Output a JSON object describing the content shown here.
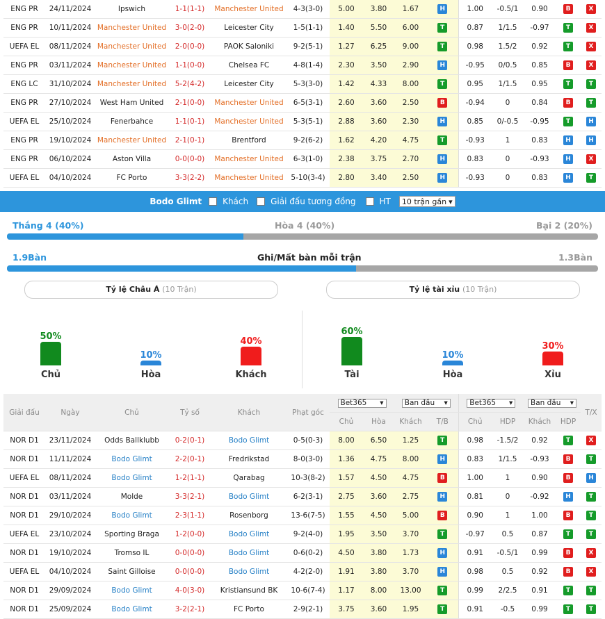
{
  "top_matches": [
    {
      "league": "ENG PR",
      "date": "24/11/2024",
      "home": "Ipswich",
      "home_hl": false,
      "score": "1-1(1-1)",
      "away": "Manchester United",
      "away_hl": true,
      "hdp": "4-3(3-0)",
      "o1": "5.00",
      "o2": "3.80",
      "o3": "1.67",
      "r1": "H",
      "a1": "1.00",
      "a2": "-0.5/1",
      "a3": "0.90",
      "r2": "B",
      "r3": "X"
    },
    {
      "league": "ENG PR",
      "date": "10/11/2024",
      "home": "Manchester United",
      "home_hl": true,
      "score": "3-0(2-0)",
      "away": "Leicester City",
      "away_hl": false,
      "hdp": "1-5(1-1)",
      "o1": "1.40",
      "o2": "5.50",
      "o3": "6.00",
      "r1": "T",
      "a1": "0.87",
      "a2": "1/1.5",
      "a3": "-0.97",
      "r2": "T",
      "r3": "X"
    },
    {
      "league": "UEFA EL",
      "date": "08/11/2024",
      "home": "Manchester United",
      "home_hl": true,
      "score": "2-0(0-0)",
      "away": "PAOK Saloniki",
      "away_hl": false,
      "hdp": "9-2(5-1)",
      "o1": "1.27",
      "o2": "6.25",
      "o3": "9.00",
      "r1": "T",
      "a1": "0.98",
      "a2": "1.5/2",
      "a3": "0.92",
      "r2": "T",
      "r3": "X"
    },
    {
      "league": "ENG PR",
      "date": "03/11/2024",
      "home": "Manchester United",
      "home_hl": true,
      "score": "1-1(0-0)",
      "away": "Chelsea FC",
      "away_hl": false,
      "hdp": "4-8(1-4)",
      "o1": "2.30",
      "o2": "3.50",
      "o3": "2.90",
      "r1": "H",
      "a1": "-0.95",
      "a2": "0/0.5",
      "a3": "0.85",
      "r2": "B",
      "r3": "X"
    },
    {
      "league": "ENG LC",
      "date": "31/10/2024",
      "home": "Manchester United",
      "home_hl": true,
      "score": "5-2(4-2)",
      "away": "Leicester City",
      "away_hl": false,
      "hdp": "5-3(3-0)",
      "o1": "1.42",
      "o2": "4.33",
      "o3": "8.00",
      "r1": "T",
      "a1": "0.95",
      "a2": "1/1.5",
      "a3": "0.95",
      "r2": "T",
      "r3": "T"
    },
    {
      "league": "ENG PR",
      "date": "27/10/2024",
      "home": "West Ham United",
      "home_hl": false,
      "score": "2-1(0-0)",
      "away": "Manchester United",
      "away_hl": true,
      "hdp": "6-5(3-1)",
      "o1": "2.60",
      "o2": "3.60",
      "o3": "2.50",
      "r1": "B",
      "a1": "-0.94",
      "a2": "0",
      "a3": "0.84",
      "r2": "B",
      "r3": "T"
    },
    {
      "league": "UEFA EL",
      "date": "25/10/2024",
      "home": "Fenerbahce",
      "home_hl": false,
      "score": "1-1(0-1)",
      "away": "Manchester United",
      "away_hl": true,
      "hdp": "5-3(5-1)",
      "o1": "2.88",
      "o2": "3.60",
      "o3": "2.30",
      "r1": "H",
      "a1": "0.85",
      "a2": "0/-0.5",
      "a3": "-0.95",
      "r2": "T",
      "r3": "H"
    },
    {
      "league": "ENG PR",
      "date": "19/10/2024",
      "home": "Manchester United",
      "home_hl": true,
      "score": "2-1(0-1)",
      "away": "Brentford",
      "away_hl": false,
      "hdp": "9-2(6-2)",
      "o1": "1.62",
      "o2": "4.20",
      "o3": "4.75",
      "r1": "T",
      "a1": "-0.93",
      "a2": "1",
      "a3": "0.83",
      "r2": "H",
      "r3": "H"
    },
    {
      "league": "ENG PR",
      "date": "06/10/2024",
      "home": "Aston Villa",
      "home_hl": false,
      "score": "0-0(0-0)",
      "away": "Manchester United",
      "away_hl": true,
      "hdp": "6-3(1-0)",
      "o1": "2.38",
      "o2": "3.75",
      "o3": "2.70",
      "r1": "H",
      "a1": "0.83",
      "a2": "0",
      "a3": "-0.93",
      "r2": "H",
      "r3": "X"
    },
    {
      "league": "UEFA EL",
      "date": "04/10/2024",
      "home": "FC Porto",
      "home_hl": false,
      "score": "3-3(2-2)",
      "away": "Manchester United",
      "away_hl": true,
      "hdp": "5-10(3-4)",
      "o1": "2.80",
      "o2": "3.40",
      "o3": "2.50",
      "r1": "H",
      "a1": "-0.93",
      "a2": "0",
      "a3": "0.83",
      "r2": "H",
      "r3": "T"
    }
  ],
  "filter": {
    "team": "Bodo Glimt",
    "opt1": "Khách",
    "opt2": "Giải đấu tương đồng",
    "opt3": "HT",
    "select": "10 trận gần"
  },
  "record": {
    "win": "Thắng 4 (40%)",
    "draw": "Hòa 4 (40%)",
    "loss": "Bại 2 (20%)",
    "win_fraction": 0.4
  },
  "goals": {
    "left": "1.9Bàn",
    "title": "Ghi/Mất bàn mỗi trận",
    "right": "1.3Bàn",
    "left_fraction": 0.59
  },
  "pills": {
    "left_title": "Tỷ lệ Châu Á",
    "left_count": "(10 Trận)",
    "right_title": "Tỷ lệ tài xỉu",
    "right_count": "(10 Trận)"
  },
  "asian": [
    {
      "pct": "50%",
      "label": "Chủ",
      "value": 0.5,
      "color": "#118a1e"
    },
    {
      "pct": "10%",
      "label": "Hòa",
      "value": 0.1,
      "color": "#2a86d8"
    },
    {
      "pct": "40%",
      "label": "Khách",
      "value": 0.4,
      "color": "#f01c1c"
    }
  ],
  "overunder": [
    {
      "pct": "60%",
      "label": "Tài",
      "value": 0.6,
      "color": "#118a1e"
    },
    {
      "pct": "10%",
      "label": "Hòa",
      "value": 0.1,
      "color": "#2a86d8"
    },
    {
      "pct": "30%",
      "label": "Xỉu",
      "value": 0.3,
      "color": "#f01c1c"
    }
  ],
  "header": {
    "league": "Giải đấu",
    "date": "Ngày",
    "home": "Chủ",
    "score": "Tỷ số",
    "away": "Khách",
    "corner": "Phạt góc",
    "book1": "Bet365",
    "book2": "Ban đầu",
    "book3": "Bet365",
    "book4": "Ban đầu",
    "sub_home": "Chủ",
    "sub_draw": "Hòa",
    "sub_away": "Khách",
    "sub_tb": "T/B",
    "sub_home2": "Chủ",
    "sub_hdp": "HDP",
    "sub_away2": "Khách",
    "sub_hdp2": "HDP",
    "tx": "T/X"
  },
  "bottom_matches": [
    {
      "league": "NOR D1",
      "date": "23/11/2024",
      "home": "Odds Ballklubb",
      "home_hl": false,
      "score": "0-2(0-1)",
      "away": "Bodo Glimt",
      "away_hl": true,
      "hdp": "0-5(0-3)",
      "o1": "8.00",
      "o2": "6.50",
      "o3": "1.25",
      "r1": "T",
      "a1": "0.98",
      "a2": "-1.5/2",
      "a3": "0.92",
      "r2": "T",
      "r3": "X"
    },
    {
      "league": "NOR D1",
      "date": "11/11/2024",
      "home": "Bodo Glimt",
      "home_hl": true,
      "score": "2-2(0-1)",
      "away": "Fredrikstad",
      "away_hl": false,
      "hdp": "8-0(3-0)",
      "o1": "1.36",
      "o2": "4.75",
      "o3": "8.00",
      "r1": "H",
      "a1": "0.83",
      "a2": "1/1.5",
      "a3": "-0.93",
      "r2": "B",
      "r3": "T"
    },
    {
      "league": "UEFA EL",
      "date": "08/11/2024",
      "home": "Bodo Glimt",
      "home_hl": true,
      "score": "1-2(1-1)",
      "away": "Qarabag",
      "away_hl": false,
      "hdp": "10-3(8-2)",
      "o1": "1.57",
      "o2": "4.50",
      "o3": "4.75",
      "r1": "B",
      "a1": "1.00",
      "a2": "1",
      "a3": "0.90",
      "r2": "B",
      "r3": "H"
    },
    {
      "league": "NOR D1",
      "date": "03/11/2024",
      "home": "Molde",
      "home_hl": false,
      "score": "3-3(2-1)",
      "away": "Bodo Glimt",
      "away_hl": true,
      "hdp": "6-2(3-1)",
      "o1": "2.75",
      "o2": "3.60",
      "o3": "2.75",
      "r1": "H",
      "a1": "0.81",
      "a2": "0",
      "a3": "-0.92",
      "r2": "H",
      "r3": "T"
    },
    {
      "league": "NOR D1",
      "date": "29/10/2024",
      "home": "Bodo Glimt",
      "home_hl": true,
      "score": "2-3(1-1)",
      "away": "Rosenborg",
      "away_hl": false,
      "hdp": "13-6(7-5)",
      "o1": "1.55",
      "o2": "4.50",
      "o3": "5.00",
      "r1": "B",
      "a1": "0.90",
      "a2": "1",
      "a3": "1.00",
      "r2": "B",
      "r3": "T"
    },
    {
      "league": "UEFA EL",
      "date": "23/10/2024",
      "home": "Sporting Braga",
      "home_hl": false,
      "score": "1-2(0-0)",
      "away": "Bodo Glimt",
      "away_hl": true,
      "hdp": "9-2(4-0)",
      "o1": "1.95",
      "o2": "3.50",
      "o3": "3.70",
      "r1": "T",
      "a1": "-0.97",
      "a2": "0.5",
      "a3": "0.87",
      "r2": "T",
      "r3": "T"
    },
    {
      "league": "NOR D1",
      "date": "19/10/2024",
      "home": "Tromso IL",
      "home_hl": false,
      "score": "0-0(0-0)",
      "away": "Bodo Glimt",
      "away_hl": true,
      "hdp": "0-6(0-2)",
      "o1": "4.50",
      "o2": "3.80",
      "o3": "1.73",
      "r1": "H",
      "a1": "0.91",
      "a2": "-0.5/1",
      "a3": "0.99",
      "r2": "B",
      "r3": "X"
    },
    {
      "league": "UEFA EL",
      "date": "04/10/2024",
      "home": "Saint Gilloise",
      "home_hl": false,
      "score": "0-0(0-0)",
      "away": "Bodo Glimt",
      "away_hl": true,
      "hdp": "4-2(2-0)",
      "o1": "1.91",
      "o2": "3.80",
      "o3": "3.70",
      "r1": "H",
      "a1": "0.98",
      "a2": "0.5",
      "a3": "0.92",
      "r2": "B",
      "r3": "X"
    },
    {
      "league": "NOR D1",
      "date": "29/09/2024",
      "home": "Bodo Glimt",
      "home_hl": true,
      "score": "4-0(3-0)",
      "away": "Kristiansund BK",
      "away_hl": false,
      "hdp": "10-6(7-4)",
      "o1": "1.17",
      "o2": "8.00",
      "o3": "13.00",
      "r1": "T",
      "a1": "0.99",
      "a2": "2/2.5",
      "a3": "0.91",
      "r2": "T",
      "r3": "T"
    },
    {
      "league": "NOR D1",
      "date": "25/09/2024",
      "home": "Bodo Glimt",
      "home_hl": true,
      "score": "3-2(2-1)",
      "away": "FC Porto",
      "away_hl": false,
      "hdp": "2-9(2-1)",
      "o1": "3.75",
      "o2": "3.60",
      "o3": "1.95",
      "r1": "T",
      "a1": "0.91",
      "a2": "-0.5",
      "a3": "0.99",
      "r2": "T",
      "r3": "T"
    }
  ]
}
